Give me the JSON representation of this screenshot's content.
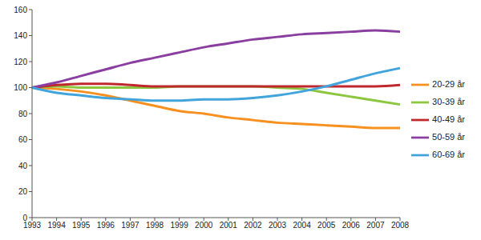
{
  "chart_data": {
    "type": "line",
    "categories": [
      "1993",
      "1994",
      "1995",
      "1996",
      "1997",
      "1998",
      "1999",
      "2000",
      "2001",
      "2002",
      "2003",
      "2004",
      "2005",
      "2006",
      "2007",
      "2008"
    ],
    "series": [
      {
        "name": "20-29 år",
        "color": "#f7901e",
        "values": [
          100,
          99,
          97,
          94,
          90,
          86,
          82,
          80,
          77,
          75,
          73,
          72,
          71,
          70,
          69,
          69
        ]
      },
      {
        "name": "30-39 år",
        "color": "#8cc63f",
        "values": [
          100,
          101,
          100,
          100,
          100,
          100,
          101,
          101,
          101,
          101,
          100,
          99,
          96,
          93,
          90,
          87
        ]
      },
      {
        "name": "40-49 år",
        "color": "#c0272d",
        "values": [
          100,
          102,
          103,
          103,
          102,
          101,
          101,
          101,
          101,
          101,
          101,
          101,
          101,
          101,
          101,
          102
        ]
      },
      {
        "name": "50-59 år",
        "color": "#8a3fa0",
        "values": [
          100,
          104,
          109,
          114,
          119,
          123,
          127,
          131,
          134,
          137,
          139,
          141,
          142,
          143,
          144,
          143
        ]
      },
      {
        "name": "60-69 år",
        "color": "#41a4dc",
        "values": [
          100,
          96,
          94,
          92,
          91,
          90,
          90,
          91,
          91,
          92,
          94,
          97,
          101,
          106,
          111,
          115
        ]
      }
    ],
    "ylim": [
      0,
      160
    ],
    "yticks": [
      0,
      20,
      40,
      60,
      80,
      100,
      120,
      140,
      160
    ],
    "grid": false,
    "legend": "right"
  }
}
